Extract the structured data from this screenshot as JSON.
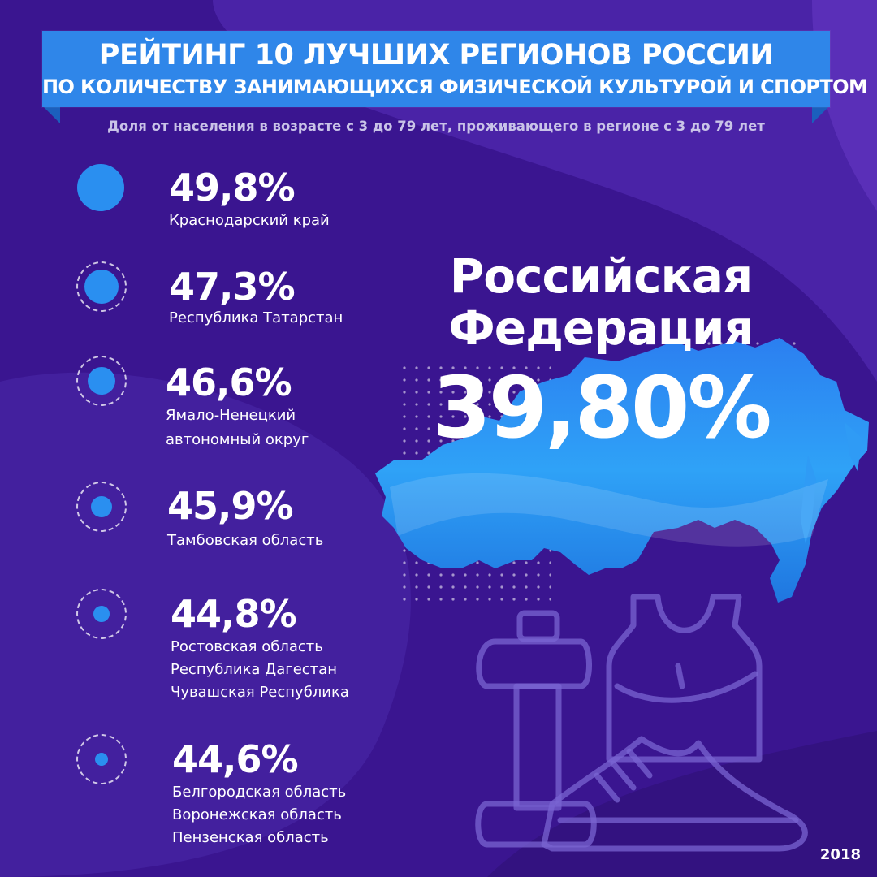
{
  "header": {
    "title_line1": "РЕЙТИНГ 10 ЛУЧШИХ РЕГИОНОВ РОССИИ",
    "title_line2": "ПО КОЛИЧЕСТВУ ЗАНИМАЮЩИХСЯ ФИЗИЧЕСКОЙ КУЛЬТУРОЙ И СПОРТОМ",
    "subtitle": "Доля от населения в возрасте с 3 до 79 лет, проживающего в регионе с 3 до 79 лет"
  },
  "ranking": [
    {
      "value": "49,8%",
      "regions": [
        "Краснодарский край"
      ]
    },
    {
      "value": "47,3%",
      "regions": [
        "Республика Татарстан"
      ]
    },
    {
      "value": "46,6%",
      "regions": [
        "Ямало-Ненецкий",
        "автономный округ"
      ]
    },
    {
      "value": "45,9%",
      "regions": [
        "Тамбовская область"
      ]
    },
    {
      "value": "44,8%",
      "regions": [
        "Ростовская область",
        "Республика Дагестан",
        "Чувашская Республика"
      ]
    },
    {
      "value": "44,6%",
      "regions": [
        "Белгородская область",
        "Воронежская область",
        "Пензенская область"
      ]
    }
  ],
  "federation": {
    "name_line1": "Российская",
    "name_line2": "Федерация",
    "value": "39,80%"
  },
  "year": "2018",
  "colors": {
    "background": "#3a1590",
    "banner": "#2f86e9",
    "accent": "#2a8ff0"
  },
  "icons": [
    "dumbbell-icon",
    "sport-tank-top-icon",
    "sneaker-icon",
    "russia-map"
  ]
}
